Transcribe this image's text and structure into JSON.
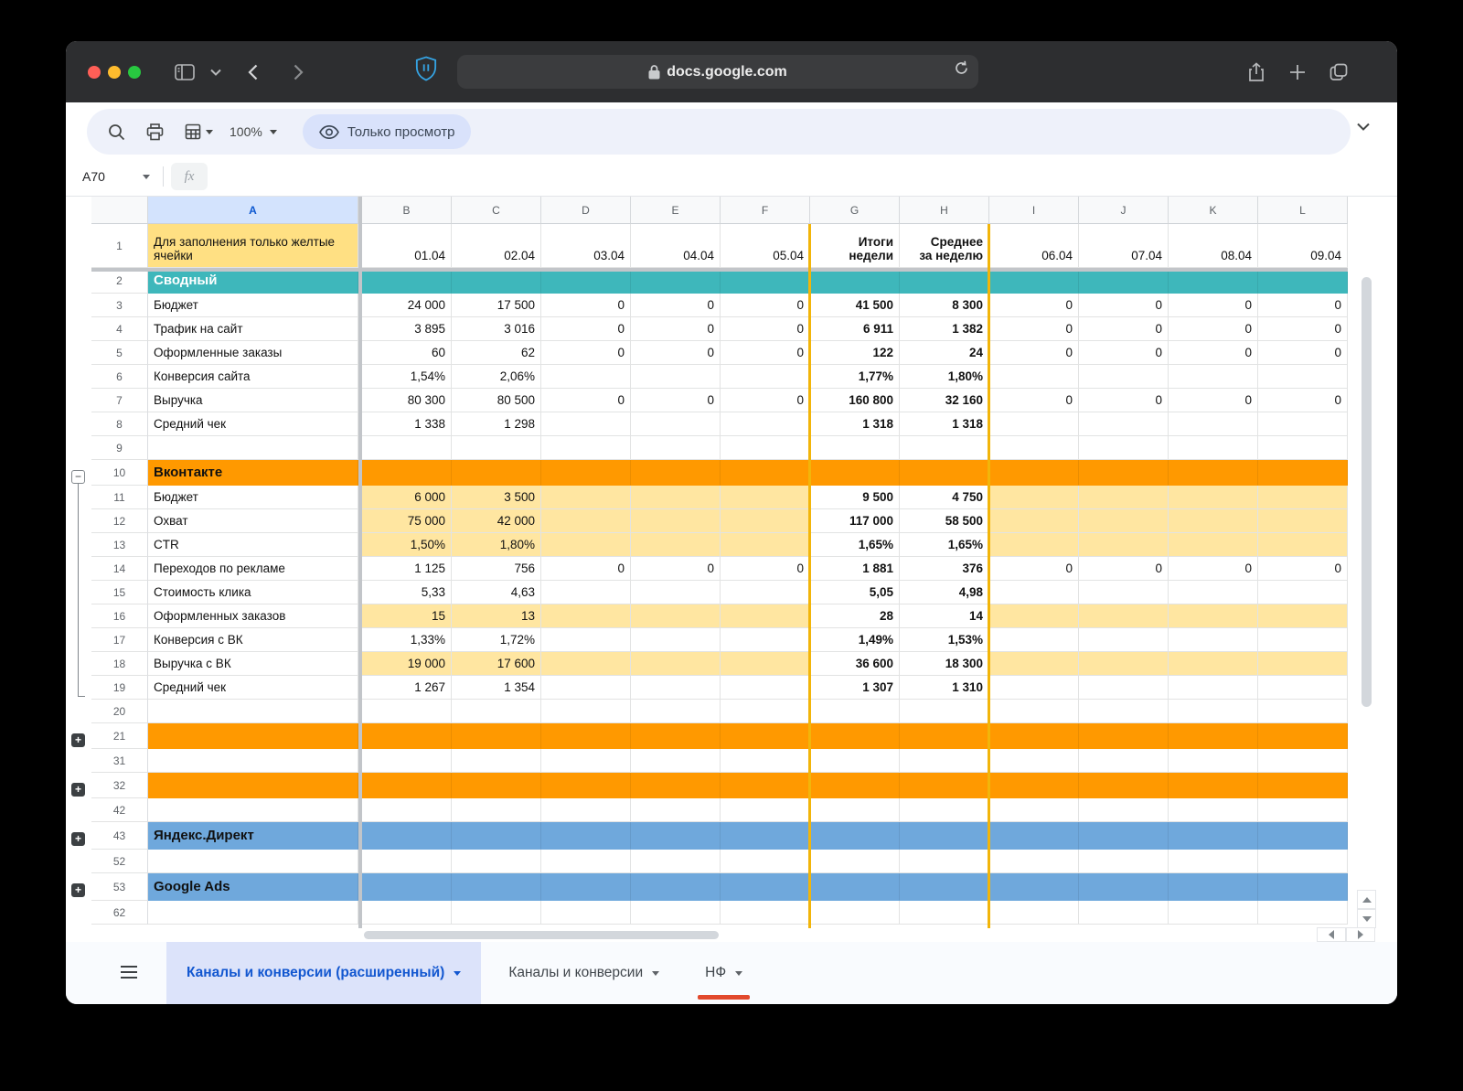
{
  "browser": {
    "url": "docs.google.com",
    "traffic_lights": {
      "close": "#ff5f57",
      "minimize": "#febc2e",
      "zoom": "#28c840"
    }
  },
  "toolbar": {
    "zoom_value": "100%",
    "view_mode_label": "Только просмотр"
  },
  "formula_bar": {
    "name_box_value": "A70",
    "fx_label": "fx"
  },
  "colors": {
    "teal": "#3eb7bb",
    "orange": "#ff9900",
    "blue": "#6fa8dc",
    "yellow_input": "#ffe083",
    "yellow_band": "#ffe6a1",
    "accent_line": "#f2b50a",
    "selected_header_bg": "#d3e3fd",
    "selected_header_text": "#0b57d0",
    "tab_color_red": "#e2492d",
    "active_tab_bg": "#dce3fa",
    "active_tab_text": "#1257d0"
  },
  "grid": {
    "columns": [
      "A",
      "B",
      "C",
      "D",
      "E",
      "F",
      "G",
      "H",
      "I",
      "J",
      "K",
      "L"
    ],
    "selected_column": "A",
    "row1": {
      "num": "1",
      "a": "Для заполнения только желтые ячейки",
      "cells": [
        "01.04",
        "02.04",
        "03.04",
        "04.04",
        "05.04",
        "Итоги\nнедели",
        "Среднее\nза неделю",
        "06.04",
        "07.04",
        "08.04",
        "09.04"
      ]
    },
    "rows": [
      {
        "num": "2",
        "label": "Сводный",
        "type": "teal"
      },
      {
        "num": "3",
        "label": "Бюджет",
        "cells": [
          "24 000",
          "17 500",
          "0",
          "0",
          "0",
          "41 500",
          "8 300",
          "0",
          "0",
          "0",
          "0"
        ]
      },
      {
        "num": "4",
        "label": "Трафик на сайт",
        "cells": [
          "3 895",
          "3 016",
          "0",
          "0",
          "0",
          "6 911",
          "1 382",
          "0",
          "0",
          "0",
          "0"
        ]
      },
      {
        "num": "5",
        "label": "Оформленные заказы",
        "cells": [
          "60",
          "62",
          "0",
          "0",
          "0",
          "122",
          "24",
          "0",
          "0",
          "0",
          "0"
        ]
      },
      {
        "num": "6",
        "label": "Конверсия сайта",
        "cells": [
          "1,54%",
          "2,06%",
          "",
          "",
          "",
          "1,77%",
          "1,80%",
          "",
          "",
          "",
          ""
        ]
      },
      {
        "num": "7",
        "label": "Выручка",
        "cells": [
          "80 300",
          "80 500",
          "0",
          "0",
          "0",
          "160 800",
          "32 160",
          "0",
          "0",
          "0",
          "0"
        ]
      },
      {
        "num": "8",
        "label": "Средний чек",
        "cells": [
          "1 338",
          "1 298",
          "",
          "",
          "",
          "1 318",
          "1 318",
          "",
          "",
          "",
          ""
        ]
      },
      {
        "num": "9",
        "type": "empty"
      },
      {
        "num": "10",
        "label": "Вконтакте",
        "type": "orange",
        "group": "minus"
      },
      {
        "num": "11",
        "label": "Бюджет",
        "band": true,
        "cells": [
          "6 000",
          "3 500",
          "",
          "",
          "",
          "9 500",
          "4 750",
          "",
          "",
          "",
          ""
        ]
      },
      {
        "num": "12",
        "label": "Охват",
        "band": true,
        "cells": [
          "75 000",
          "42 000",
          "",
          "",
          "",
          "117 000",
          "58 500",
          "",
          "",
          "",
          ""
        ]
      },
      {
        "num": "13",
        "label": "CTR",
        "band": true,
        "cells": [
          "1,50%",
          "1,80%",
          "",
          "",
          "",
          "1,65%",
          "1,65%",
          "",
          "",
          "",
          ""
        ]
      },
      {
        "num": "14",
        "label": "Переходов по рекламе",
        "cells": [
          "1 125",
          "756",
          "0",
          "0",
          "0",
          "1 881",
          "376",
          "0",
          "0",
          "0",
          "0"
        ]
      },
      {
        "num": "15",
        "label": "Стоимость клика",
        "cells": [
          "5,33",
          "4,63",
          "",
          "",
          "",
          "5,05",
          "4,98",
          "",
          "",
          "",
          ""
        ]
      },
      {
        "num": "16",
        "label": "Оформленных заказов",
        "band": true,
        "cells": [
          "15",
          "13",
          "",
          "",
          "",
          "28",
          "14",
          "",
          "",
          "",
          ""
        ]
      },
      {
        "num": "17",
        "label": "Конверсия с ВК",
        "cells": [
          "1,33%",
          "1,72%",
          "",
          "",
          "",
          "1,49%",
          "1,53%",
          "",
          "",
          "",
          ""
        ]
      },
      {
        "num": "18",
        "label": "Выручка с ВК",
        "band": true,
        "cells": [
          "19 000",
          "17 600",
          "",
          "",
          "",
          "36 600",
          "18 300",
          "",
          "",
          "",
          ""
        ]
      },
      {
        "num": "19",
        "label": "Средний чек",
        "cells": [
          "1 267",
          "1 354",
          "",
          "",
          "",
          "1 307",
          "1 310",
          "",
          "",
          "",
          ""
        ]
      },
      {
        "num": "20",
        "type": "empty"
      },
      {
        "num": "21",
        "type": "orange",
        "group": "plus"
      },
      {
        "num": "31",
        "type": "empty"
      },
      {
        "num": "32",
        "type": "orange",
        "group": "plus"
      },
      {
        "num": "42",
        "type": "empty"
      },
      {
        "num": "43",
        "label": "Яндекс.Директ",
        "type": "blue",
        "group": "plus"
      },
      {
        "num": "52",
        "type": "empty"
      },
      {
        "num": "53",
        "label": "Google Ads",
        "type": "blue",
        "group": "plus"
      },
      {
        "num": "62",
        "type": "empty"
      }
    ]
  },
  "sheet_tabs": {
    "items": [
      {
        "label": "Каналы и конверсии (расширенный)",
        "active": true
      },
      {
        "label": "Каналы и конверсии",
        "active": false
      },
      {
        "label": "НФ",
        "active": false
      }
    ]
  }
}
